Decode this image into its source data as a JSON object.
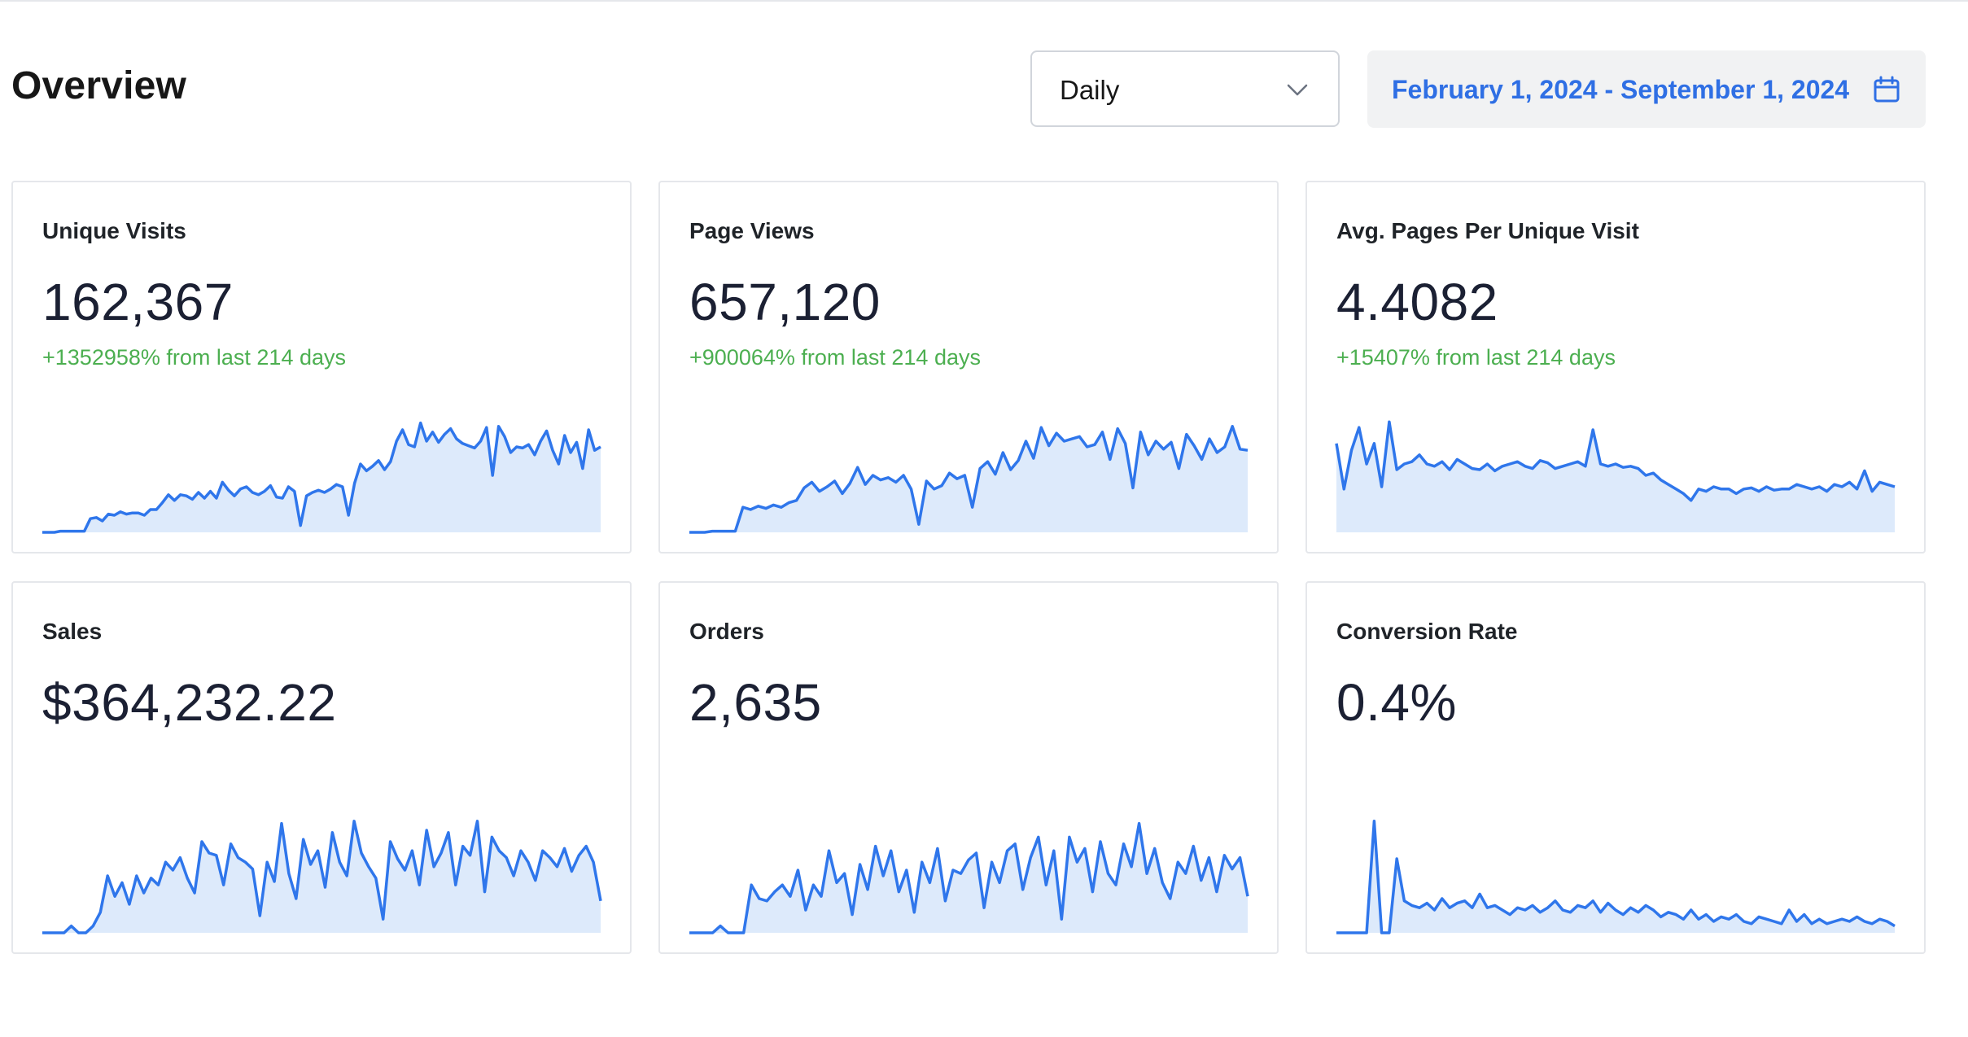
{
  "header": {
    "title": "Overview",
    "granularity_select": {
      "value": "Daily",
      "icon": "chevron-down-icon"
    },
    "date_range": {
      "label": "February 1, 2024 - September 1, 2024",
      "icon": "calendar-icon"
    }
  },
  "colors": {
    "accent": "#2f6fe4",
    "positive_change": "#4caf50",
    "sparkline_line": "#2f76eb",
    "sparkline_fill": "#ddeafb"
  },
  "cards": [
    {
      "label": "Unique Visits",
      "value": "162,367",
      "change": "+1352958% from last 214 days",
      "chart_data": {
        "type": "area",
        "values": [
          0.0,
          0.0,
          0.0,
          0.01,
          0.01,
          0.01,
          0.01,
          0.01,
          0.12,
          0.13,
          0.1,
          0.16,
          0.15,
          0.18,
          0.16,
          0.17,
          0.17,
          0.15,
          0.2,
          0.2,
          0.26,
          0.33,
          0.28,
          0.33,
          0.32,
          0.29,
          0.35,
          0.3,
          0.36,
          0.3,
          0.44,
          0.37,
          0.32,
          0.38,
          0.4,
          0.35,
          0.33,
          0.36,
          0.41,
          0.31,
          0.3,
          0.4,
          0.36,
          0.06,
          0.32,
          0.35,
          0.37,
          0.35,
          0.38,
          0.42,
          0.4,
          0.15,
          0.43,
          0.6,
          0.54,
          0.58,
          0.63,
          0.55,
          0.62,
          0.8,
          0.9,
          0.77,
          0.75,
          0.96,
          0.8,
          0.88,
          0.79,
          0.86,
          0.91,
          0.82,
          0.78,
          0.76,
          0.74,
          0.8,
          0.92,
          0.5,
          0.93,
          0.84,
          0.7,
          0.75,
          0.74,
          0.77,
          0.68,
          0.8,
          0.89,
          0.72,
          0.6,
          0.85,
          0.7,
          0.79,
          0.56,
          0.9,
          0.72,
          0.75
        ]
      }
    },
    {
      "label": "Page Views",
      "value": "657,120",
      "change": "+900064% from last 214 days",
      "chart_data": {
        "type": "area",
        "values": [
          0.0,
          0.0,
          0.0,
          0.01,
          0.01,
          0.01,
          0.01,
          0.22,
          0.2,
          0.23,
          0.21,
          0.24,
          0.22,
          0.26,
          0.28,
          0.39,
          0.44,
          0.36,
          0.4,
          0.45,
          0.34,
          0.43,
          0.57,
          0.42,
          0.5,
          0.46,
          0.48,
          0.44,
          0.5,
          0.38,
          0.07,
          0.45,
          0.38,
          0.41,
          0.52,
          0.47,
          0.5,
          0.22,
          0.56,
          0.62,
          0.51,
          0.7,
          0.55,
          0.63,
          0.8,
          0.65,
          0.92,
          0.76,
          0.87,
          0.8,
          0.82,
          0.84,
          0.75,
          0.77,
          0.88,
          0.64,
          0.91,
          0.78,
          0.39,
          0.88,
          0.68,
          0.8,
          0.73,
          0.79,
          0.56,
          0.86,
          0.76,
          0.64,
          0.82,
          0.7,
          0.75,
          0.93,
          0.73,
          0.72
        ]
      }
    },
    {
      "label": "Avg. Pages Per Unique Visit",
      "value": "4.4082",
      "change": "+15407% from last 214 days",
      "chart_data": {
        "type": "area",
        "values": [
          0.78,
          0.38,
          0.72,
          0.92,
          0.6,
          0.78,
          0.4,
          0.97,
          0.55,
          0.6,
          0.62,
          0.68,
          0.6,
          0.58,
          0.62,
          0.55,
          0.64,
          0.6,
          0.56,
          0.55,
          0.6,
          0.54,
          0.58,
          0.6,
          0.62,
          0.58,
          0.56,
          0.63,
          0.61,
          0.56,
          0.58,
          0.6,
          0.62,
          0.58,
          0.9,
          0.6,
          0.58,
          0.6,
          0.57,
          0.58,
          0.56,
          0.5,
          0.52,
          0.46,
          0.42,
          0.38,
          0.34,
          0.28,
          0.38,
          0.36,
          0.4,
          0.38,
          0.38,
          0.34,
          0.38,
          0.39,
          0.36,
          0.4,
          0.37,
          0.38,
          0.38,
          0.42,
          0.4,
          0.38,
          0.4,
          0.36,
          0.42,
          0.4,
          0.44,
          0.38,
          0.54,
          0.36,
          0.44,
          0.42,
          0.4
        ]
      }
    },
    {
      "label": "Sales",
      "value": "$364,232.22",
      "change": "",
      "chart_data": {
        "type": "area",
        "values": [
          0.0,
          0.0,
          0.0,
          0.0,
          0.06,
          0.0,
          0.0,
          0.06,
          0.18,
          0.5,
          0.32,
          0.44,
          0.25,
          0.5,
          0.35,
          0.48,
          0.42,
          0.62,
          0.55,
          0.66,
          0.48,
          0.35,
          0.8,
          0.7,
          0.68,
          0.42,
          0.78,
          0.66,
          0.62,
          0.56,
          0.15,
          0.62,
          0.45,
          0.96,
          0.52,
          0.3,
          0.82,
          0.6,
          0.72,
          0.4,
          0.88,
          0.62,
          0.5,
          0.98,
          0.7,
          0.58,
          0.48,
          0.12,
          0.8,
          0.65,
          0.55,
          0.72,
          0.42,
          0.9,
          0.58,
          0.7,
          0.88,
          0.42,
          0.76,
          0.68,
          0.98,
          0.36,
          0.84,
          0.72,
          0.66,
          0.5,
          0.72,
          0.62,
          0.46,
          0.72,
          0.66,
          0.58,
          0.74,
          0.54,
          0.68,
          0.76,
          0.62,
          0.28
        ]
      }
    },
    {
      "label": "Orders",
      "value": "2,635",
      "change": "",
      "chart_data": {
        "type": "area",
        "values": [
          0.0,
          0.0,
          0.0,
          0.0,
          0.06,
          0.0,
          0.0,
          0.0,
          0.42,
          0.3,
          0.28,
          0.36,
          0.42,
          0.32,
          0.55,
          0.2,
          0.42,
          0.32,
          0.72,
          0.44,
          0.52,
          0.16,
          0.6,
          0.38,
          0.76,
          0.5,
          0.72,
          0.36,
          0.55,
          0.18,
          0.62,
          0.44,
          0.74,
          0.28,
          0.55,
          0.52,
          0.64,
          0.7,
          0.22,
          0.62,
          0.44,
          0.72,
          0.78,
          0.38,
          0.66,
          0.84,
          0.42,
          0.72,
          0.12,
          0.84,
          0.62,
          0.74,
          0.36,
          0.8,
          0.52,
          0.42,
          0.78,
          0.58,
          0.96,
          0.52,
          0.74,
          0.44,
          0.3,
          0.62,
          0.52,
          0.76,
          0.46,
          0.66,
          0.36,
          0.68,
          0.56,
          0.66,
          0.32
        ]
      }
    },
    {
      "label": "Conversion Rate",
      "value": "0.4%",
      "change": "",
      "chart_data": {
        "type": "area",
        "values": [
          0.0,
          0.0,
          0.0,
          0.0,
          0.0,
          0.98,
          0.0,
          0.0,
          0.65,
          0.28,
          0.24,
          0.22,
          0.26,
          0.2,
          0.3,
          0.22,
          0.26,
          0.28,
          0.22,
          0.34,
          0.22,
          0.24,
          0.2,
          0.16,
          0.22,
          0.2,
          0.24,
          0.18,
          0.22,
          0.28,
          0.2,
          0.18,
          0.24,
          0.22,
          0.28,
          0.18,
          0.26,
          0.2,
          0.16,
          0.22,
          0.18,
          0.24,
          0.2,
          0.14,
          0.18,
          0.16,
          0.12,
          0.2,
          0.12,
          0.16,
          0.1,
          0.14,
          0.12,
          0.16,
          0.1,
          0.08,
          0.14,
          0.12,
          0.1,
          0.08,
          0.2,
          0.1,
          0.16,
          0.08,
          0.12,
          0.08,
          0.1,
          0.12,
          0.1,
          0.14,
          0.1,
          0.08,
          0.12,
          0.1,
          0.06
        ]
      }
    }
  ]
}
